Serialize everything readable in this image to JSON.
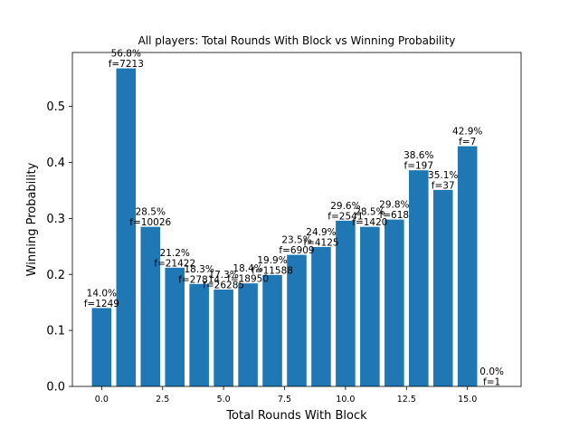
{
  "chart_data": {
    "type": "bar",
    "title": "All players: Total Rounds With Block vs Winning Probability",
    "xlabel": "Total Rounds With Block",
    "ylabel": "Winning Probability",
    "x": [
      0,
      1,
      2,
      3,
      4,
      5,
      6,
      7,
      8,
      9,
      10,
      11,
      12,
      13,
      14,
      15,
      16
    ],
    "values": [
      0.14,
      0.568,
      0.285,
      0.212,
      0.183,
      0.173,
      0.184,
      0.199,
      0.235,
      0.249,
      0.296,
      0.285,
      0.298,
      0.386,
      0.351,
      0.429,
      0.0
    ],
    "pct_labels": [
      "14.0%",
      "56.8%",
      "28.5%",
      "21.2%",
      "18.3%",
      "17.3%",
      "18.4%",
      "19.9%",
      "23.5%",
      "24.9%",
      "29.6%",
      "28.5%",
      "29.8%",
      "38.6%",
      "35.1%",
      "42.9%",
      "0.0%"
    ],
    "freq_labels": [
      "f=1249",
      "f=7213",
      "f=10026",
      "f=21422",
      "f=27814",
      "f=26285",
      "f=18950",
      "f=11588",
      "f=6909",
      "f=4125",
      "f=2541",
      "f=1420",
      "f=618",
      "f=197",
      "f=37",
      "f=7",
      "f=1"
    ],
    "xlim": [
      -1.2,
      17.2
    ],
    "ylim": [
      0,
      0.5964
    ],
    "xticks": [
      0.0,
      2.5,
      5.0,
      7.5,
      10.0,
      12.5,
      15.0
    ],
    "xtick_labels": [
      "0.0",
      "2.5",
      "5.0",
      "7.5",
      "10.0",
      "12.5",
      "15.0"
    ],
    "yticks": [
      0.0,
      0.1,
      0.2,
      0.3,
      0.4,
      0.5
    ],
    "ytick_labels": [
      "0.0",
      "0.1",
      "0.2",
      "0.3",
      "0.4",
      "0.5"
    ],
    "bar_color": "#1f77b4",
    "grid": false,
    "legend": "none"
  }
}
